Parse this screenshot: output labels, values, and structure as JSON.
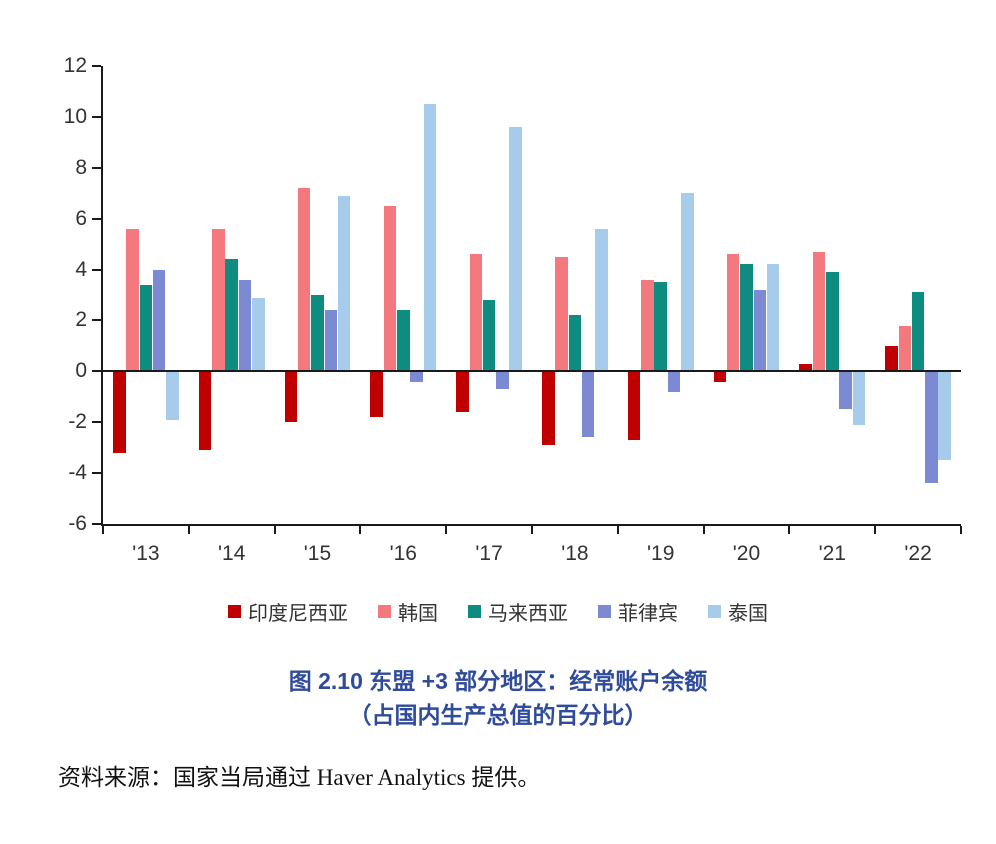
{
  "title": {
    "line1": "图 2.10 东盟 +3 部分地区：经常账户余额",
    "line2": "（占国内生产总值的百分比）"
  },
  "source": "资料来源：国家当局通过 Haver Analytics 提供。",
  "chart_data": {
    "type": "bar",
    "title": "图 2.10 东盟 +3 部分地区：经常账户余额（占国内生产总值的百分比）",
    "categories": [
      "'13",
      "'14",
      "'15",
      "'16",
      "'17",
      "'18",
      "'19",
      "'20",
      "'21",
      "'22"
    ],
    "series": [
      {
        "name": "印度尼西亚",
        "key": "indonesia",
        "color": "#C00000",
        "values": [
          -3.2,
          -3.1,
          -2.0,
          -1.8,
          -1.6,
          -2.9,
          -2.7,
          -0.4,
          0.3,
          1.0
        ]
      },
      {
        "name": "韩国",
        "key": "korea",
        "color": "#F4797E",
        "values": [
          5.6,
          5.6,
          7.2,
          6.5,
          4.6,
          4.5,
          3.6,
          4.6,
          4.7,
          1.8
        ]
      },
      {
        "name": "马来西亚",
        "key": "malaysia",
        "color": "#0E8C80",
        "values": [
          3.4,
          4.4,
          3.0,
          2.4,
          2.8,
          2.2,
          3.5,
          4.2,
          3.9,
          3.1
        ]
      },
      {
        "name": "菲律宾",
        "key": "philippines",
        "color": "#7B8AD2",
        "values": [
          4.0,
          3.6,
          2.4,
          -0.4,
          -0.7,
          -2.6,
          -0.8,
          3.2,
          -1.5,
          -4.4
        ]
      },
      {
        "name": "泰国",
        "key": "thailand",
        "color": "#A7CBEB",
        "values": [
          -1.9,
          2.9,
          6.9,
          10.5,
          9.6,
          5.6,
          7.0,
          4.2,
          -2.1,
          -3.5
        ]
      }
    ],
    "ylim": [
      -6,
      12
    ],
    "yticks": [
      12,
      10,
      8,
      6,
      4,
      2,
      0,
      -2,
      -4,
      -6
    ],
    "xlabel": "",
    "ylabel": "",
    "grid": false,
    "legend_position": "bottom"
  }
}
